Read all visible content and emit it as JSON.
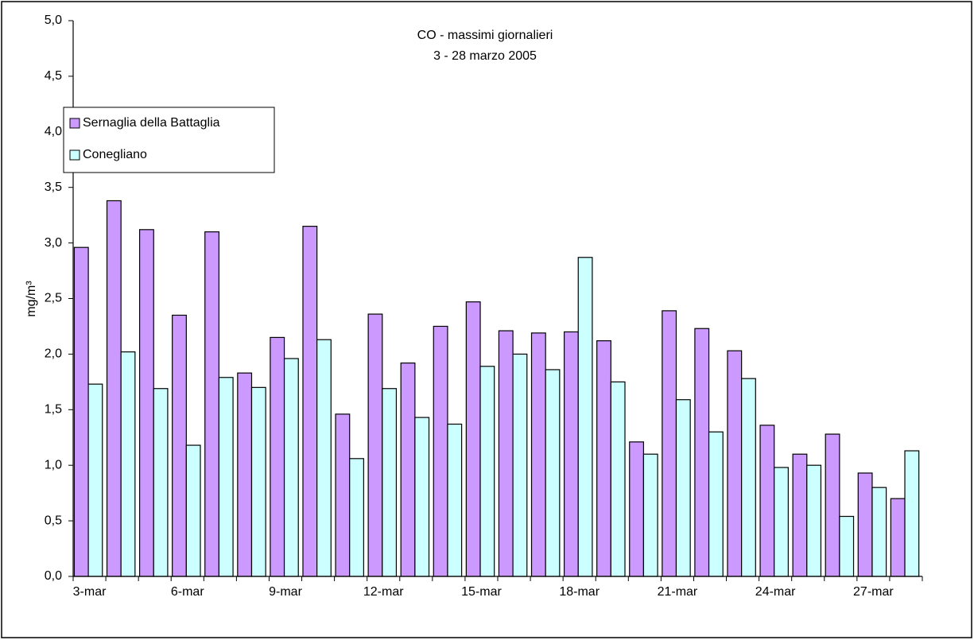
{
  "chart_data": {
    "type": "bar",
    "title": "CO - massimi giornalieri",
    "subtitle": "3 - 28 marzo 2005",
    "y_label": "mg/m³",
    "categories": [
      "3-mar",
      null,
      null,
      "6-mar",
      null,
      null,
      "9-mar",
      null,
      null,
      "12-mar",
      null,
      null,
      "15-mar",
      null,
      null,
      "18-mar",
      null,
      null,
      "21-mar",
      null,
      null,
      "24-mar",
      null,
      null,
      "27-mar",
      null
    ],
    "series": [
      {
        "name": "Sernaglia della Battaglia",
        "color": "#cc99ff",
        "values": [
          2.96,
          3.38,
          3.12,
          2.35,
          3.1,
          1.83,
          2.15,
          3.15,
          1.46,
          2.36,
          1.92,
          2.25,
          2.47,
          2.21,
          2.19,
          2.2,
          2.12,
          1.21,
          2.39,
          2.23,
          2.03,
          1.36,
          1.1,
          1.28,
          0.93,
          0.7
        ]
      },
      {
        "name": "Conegliano",
        "color": "#ccffff",
        "values": [
          1.73,
          2.02,
          1.69,
          1.18,
          1.79,
          1.7,
          1.96,
          2.13,
          1.06,
          1.69,
          1.43,
          1.37,
          1.89,
          2.0,
          1.86,
          2.87,
          1.75,
          1.1,
          1.59,
          1.3,
          1.78,
          0.98,
          1.0,
          0.54,
          0.8,
          1.13
        ]
      }
    ],
    "ylim": [
      0,
      5
    ],
    "yticks": [
      {
        "value": 0,
        "label": "0,0"
      },
      {
        "value": 0.5,
        "label": "0,5"
      },
      {
        "value": 1,
        "label": "1,0"
      },
      {
        "value": 1.5,
        "label": "1,5"
      },
      {
        "value": 2,
        "label": "2,0"
      },
      {
        "value": 2.5,
        "label": "2,5"
      },
      {
        "value": 3,
        "label": "3,0"
      },
      {
        "value": 3.5,
        "label": "3,5"
      },
      {
        "value": 4,
        "label": "4,0"
      },
      {
        "value": 4.5,
        "label": "4,5"
      },
      {
        "value": 5,
        "label": "5,0"
      }
    ],
    "grid": false,
    "legend": "top-left"
  }
}
